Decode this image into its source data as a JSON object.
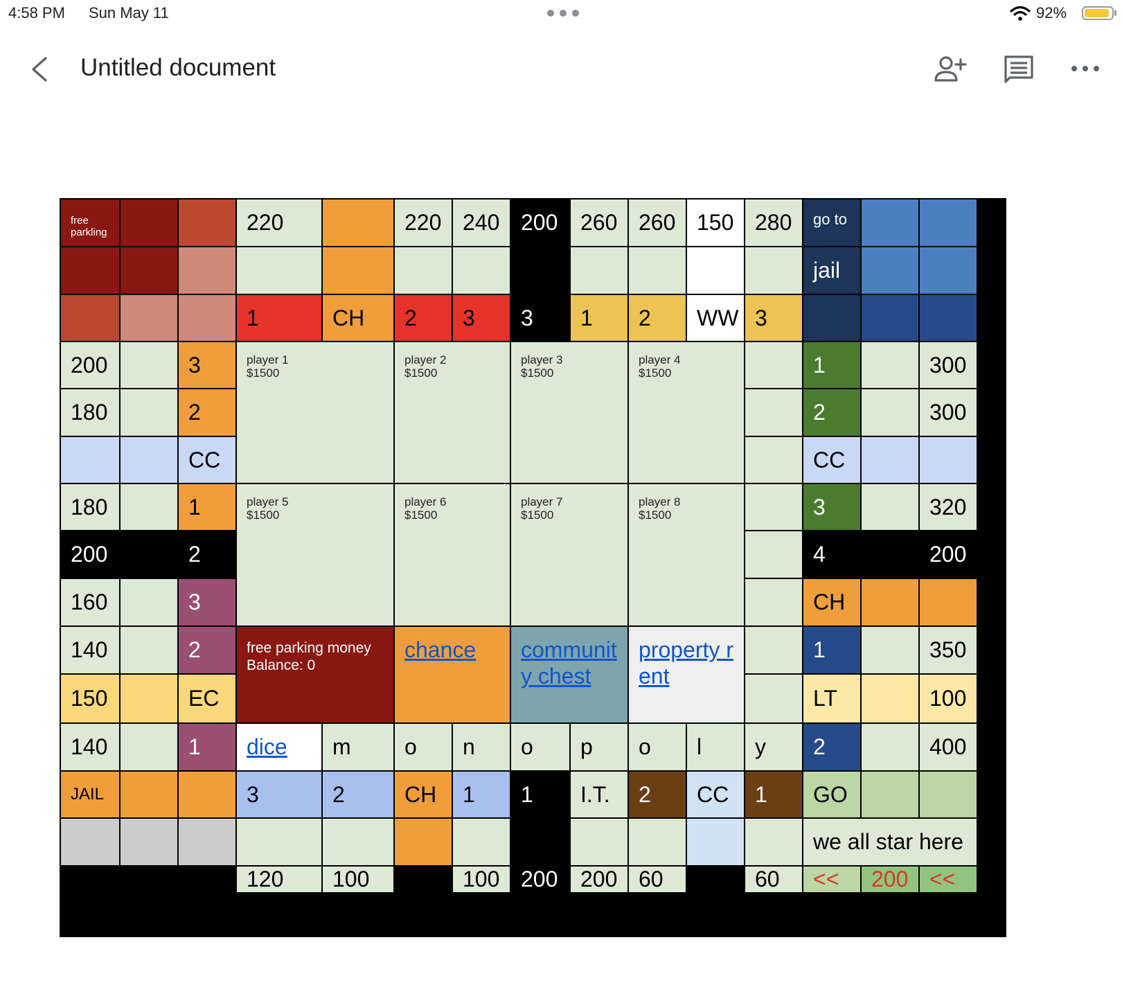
{
  "status_bar": {
    "time": "4:58 PM",
    "date": "Sun May 11",
    "battery_percent": "92%",
    "battery_level": 0.92,
    "wifi_icon": "wifi-icon",
    "battery_icon": "battery-icon"
  },
  "toolbar": {
    "back_icon": "chevron-left-icon",
    "title": "Untitled document",
    "share_icon": "add-person-icon",
    "comment_icon": "comment-icon",
    "more_icon": "more-horizontal-icon"
  },
  "board": {
    "rows": [
      [
        {
          "text": "free parkling",
          "bg": "#8a1812",
          "color": "#ffffff",
          "style": "s"
        },
        {
          "text": "",
          "bg": "#8a1812"
        },
        {
          "text": "",
          "bg": "#bc4832"
        },
        {
          "text": "220",
          "bg": "#dce9d5"
        },
        {
          "text": "",
          "bg": "#f09e3c"
        },
        {
          "text": "220",
          "bg": "#dce9d5"
        },
        {
          "text": "240",
          "bg": "#dce9d5"
        },
        {
          "text": "200",
          "bg": "#000000",
          "color": "#ffffff"
        },
        {
          "text": "260",
          "bg": "#dce9d5"
        },
        {
          "text": "260",
          "bg": "#dce9d5"
        },
        {
          "text": "150",
          "bg": "#ffffff"
        },
        {
          "text": "280",
          "bg": "#dce9d5"
        },
        {
          "text": "go to",
          "bg": "#1c3559",
          "color": "#ffffff",
          "style": "goto"
        },
        {
          "text": "",
          "bg": "#4a80c0"
        },
        {
          "text": "",
          "bg": "#4a80c0"
        }
      ],
      [
        {
          "text": "",
          "bg": "#8a1812"
        },
        {
          "text": "",
          "bg": "#8a1812"
        },
        {
          "text": "",
          "bg": "#d08878"
        },
        {
          "text": "",
          "bg": "#dce9d5"
        },
        {
          "text": "",
          "bg": "#f09e3c"
        },
        {
          "text": "",
          "bg": "#dce9d5"
        },
        {
          "text": "",
          "bg": "#dce9d5"
        },
        {
          "text": "",
          "bg": "#000000"
        },
        {
          "text": "",
          "bg": "#dce9d5"
        },
        {
          "text": "",
          "bg": "#dce9d5"
        },
        {
          "text": "",
          "bg": "#ffffff"
        },
        {
          "text": "",
          "bg": "#dce9d5"
        },
        {
          "text": "jail",
          "bg": "#1c3559",
          "color": "#ffffff"
        },
        {
          "text": "",
          "bg": "#4a80c0"
        },
        {
          "text": "",
          "bg": "#4a80c0"
        }
      ],
      [
        {
          "text": "",
          "bg": "#bc4832"
        },
        {
          "text": "",
          "bg": "#d08878"
        },
        {
          "text": "",
          "bg": "#d08878"
        },
        {
          "text": "1",
          "bg": "#e63329"
        },
        {
          "text": "CH",
          "bg": "#f09e3c"
        },
        {
          "text": "2",
          "bg": "#e63329"
        },
        {
          "text": "3",
          "bg": "#e63329"
        },
        {
          "text": "3",
          "bg": "#000000",
          "color": "#ffffff"
        },
        {
          "text": "1",
          "bg": "#eec355"
        },
        {
          "text": "2",
          "bg": "#eec355"
        },
        {
          "text": "WW",
          "bg": "#ffffff"
        },
        {
          "text": "3",
          "bg": "#eec355"
        },
        {
          "text": "",
          "bg": "#1c3559"
        },
        {
          "text": "",
          "bg": "#244a8a"
        },
        {
          "text": "",
          "bg": "#244a8a"
        }
      ],
      [
        {
          "text": "200",
          "bg": "#dce9d5"
        },
        {
          "text": "",
          "bg": "#dce9d5"
        },
        {
          "text": "3",
          "bg": "#f09e3c"
        },
        null,
        null,
        null,
        null,
        null,
        null,
        null,
        null,
        {
          "text": "",
          "bg": "#dce9d5"
        },
        {
          "text": "1",
          "bg": "#4a7b2f",
          "color": "#ffffff"
        },
        {
          "text": "",
          "bg": "#dce9d5"
        },
        {
          "text": "300",
          "bg": "#dce9d5"
        }
      ],
      [
        {
          "text": "180",
          "bg": "#dce9d5"
        },
        {
          "text": "",
          "bg": "#dce9d5"
        },
        {
          "text": "2",
          "bg": "#f09e3c"
        },
        null,
        null,
        null,
        null,
        null,
        null,
        null,
        null,
        {
          "text": "",
          "bg": "#dce9d5"
        },
        {
          "text": "2",
          "bg": "#4a7b2f",
          "color": "#ffffff"
        },
        {
          "text": "",
          "bg": "#dce9d5"
        },
        {
          "text": "300",
          "bg": "#dce9d5"
        }
      ],
      [
        {
          "text": "",
          "bg": "#c9d9f5"
        },
        {
          "text": "",
          "bg": "#c9d9f5"
        },
        {
          "text": "CC",
          "bg": "#c9d9f5"
        },
        null,
        null,
        null,
        null,
        null,
        null,
        null,
        null,
        {
          "text": "",
          "bg": "#dce9d5"
        },
        {
          "text": "CC",
          "bg": "#c9d9f5"
        },
        {
          "text": "",
          "bg": "#c9d9f5"
        },
        {
          "text": "",
          "bg": "#c9d9f5"
        }
      ],
      [
        {
          "text": "180",
          "bg": "#dce9d5"
        },
        {
          "text": "",
          "bg": "#dce9d5"
        },
        {
          "text": "1",
          "bg": "#f09e3c"
        },
        null,
        null,
        null,
        null,
        null,
        null,
        null,
        null,
        {
          "text": "",
          "bg": "#dce9d5"
        },
        {
          "text": "3",
          "bg": "#4a7b2f",
          "color": "#ffffff"
        },
        {
          "text": "",
          "bg": "#dce9d5"
        },
        {
          "text": "320",
          "bg": "#dce9d5"
        }
      ],
      [
        {
          "text": "200",
          "bg": "#000000",
          "color": "#ffffff"
        },
        {
          "text": "",
          "bg": "#000000"
        },
        {
          "text": "2",
          "bg": "#000000",
          "color": "#ffffff"
        },
        null,
        null,
        null,
        null,
        null,
        null,
        null,
        null,
        {
          "text": "",
          "bg": "#dce9d5"
        },
        {
          "text": "4",
          "bg": "#000000",
          "color": "#ffffff"
        },
        {
          "text": "",
          "bg": "#000000"
        },
        {
          "text": "200",
          "bg": "#000000",
          "color": "#ffffff"
        }
      ],
      [
        {
          "text": "160",
          "bg": "#dce9d5"
        },
        {
          "text": "",
          "bg": "#dce9d5"
        },
        {
          "text": "3",
          "bg": "#9b4f72",
          "color": "#ffffff"
        },
        null,
        null,
        null,
        null,
        null,
        null,
        null,
        null,
        {
          "text": "",
          "bg": "#dce9d5"
        },
        {
          "text": "CH",
          "bg": "#f09e3c"
        },
        {
          "text": "",
          "bg": "#f09e3c"
        },
        {
          "text": "",
          "bg": "#f09e3c"
        }
      ],
      [
        {
          "text": "140",
          "bg": "#dce9d5"
        },
        {
          "text": "",
          "bg": "#dce9d5"
        },
        {
          "text": "2",
          "bg": "#9b4f72",
          "color": "#ffffff"
        },
        null,
        null,
        null,
        null,
        null,
        null,
        null,
        null,
        {
          "text": "",
          "bg": "#dce9d5"
        },
        {
          "text": "1",
          "bg": "#244a8a",
          "color": "#ffffff"
        },
        {
          "text": "",
          "bg": "#dce9d5"
        },
        {
          "text": "350",
          "bg": "#dce9d5"
        }
      ],
      [
        {
          "text": "150",
          "bg": "#f8d87a"
        },
        {
          "text": "",
          "bg": "#f8d87a"
        },
        {
          "text": "EC",
          "bg": "#f8d87a"
        },
        null,
        null,
        null,
        null,
        null,
        null,
        null,
        null,
        {
          "text": "",
          "bg": "#dce9d5"
        },
        {
          "text": "LT",
          "bg": "#fbe7a6"
        },
        {
          "text": "",
          "bg": "#fbe7a6"
        },
        {
          "text": "100",
          "bg": "#fbe7a6"
        }
      ],
      [
        {
          "text": "140",
          "bg": "#dce9d5"
        },
        {
          "text": "",
          "bg": "#dce9d5"
        },
        {
          "text": "1",
          "bg": "#9b4f72",
          "color": "#ffffff"
        },
        {
          "text": "dice",
          "bg": "#ffffff",
          "color": "#1155cc",
          "link": true
        },
        {
          "text": "m",
          "bg": "#dce9d5"
        },
        {
          "text": "o",
          "bg": "#dce9d5"
        },
        {
          "text": "n",
          "bg": "#dce9d5"
        },
        {
          "text": "o",
          "bg": "#dce9d5"
        },
        {
          "text": "p",
          "bg": "#dce9d5"
        },
        {
          "text": "o",
          "bg": "#dce9d5"
        },
        {
          "text": "l",
          "bg": "#dce9d5"
        },
        {
          "text": "y",
          "bg": "#dce9d5"
        },
        {
          "text": "2",
          "bg": "#244a8a",
          "color": "#ffffff"
        },
        {
          "text": "",
          "bg": "#dce9d5"
        },
        {
          "text": "400",
          "bg": "#dce9d5"
        }
      ],
      [
        {
          "text": "JAIL",
          "bg": "#f09e3c",
          "size": 24
        },
        {
          "text": "",
          "bg": "#f09e3c"
        },
        {
          "text": "",
          "bg": "#f09e3c"
        },
        {
          "text": "3",
          "bg": "#a9c0ef"
        },
        {
          "text": "2",
          "bg": "#a9c0ef"
        },
        {
          "text": "CH",
          "bg": "#f09e3c"
        },
        {
          "text": "1",
          "bg": "#a9c0ef"
        },
        {
          "text": "1",
          "bg": "#000000",
          "color": "#ffffff"
        },
        {
          "text": "I.T.",
          "bg": "#dce9d5"
        },
        {
          "text": "2",
          "bg": "#6b3f14",
          "color": "#ffffff"
        },
        {
          "text": "CC",
          "bg": "#d0e2f3"
        },
        {
          "text": "1",
          "bg": "#6b3f14",
          "color": "#ffffff"
        },
        {
          "text": "GO",
          "bg": "#bcd6a6"
        },
        {
          "text": "",
          "bg": "#bcd6a6"
        },
        {
          "text": "",
          "bg": "#bcd6a6"
        }
      ],
      [
        {
          "text": "",
          "bg": "#cccccc"
        },
        {
          "text": "",
          "bg": "#cccccc"
        },
        {
          "text": "",
          "bg": "#cccccc"
        },
        {
          "text": "",
          "bg": "#dce9d5"
        },
        {
          "text": "",
          "bg": "#dce9d5"
        },
        {
          "text": "",
          "bg": "#f09e3c"
        },
        {
          "text": "",
          "bg": "#dce9d5"
        },
        {
          "text": "",
          "bg": "#000000"
        },
        {
          "text": "",
          "bg": "#dce9d5"
        },
        {
          "text": "",
          "bg": "#dce9d5"
        },
        {
          "text": "",
          "bg": "#d0e2f3"
        },
        {
          "text": "",
          "bg": "#dce9d5"
        },
        null,
        null,
        null
      ],
      [
        {
          "text": "",
          "bg": "#cccccc"
        },
        {
          "text": "",
          "bg": "#cccccc"
        },
        {
          "text": "",
          "bg": "#cccccc"
        },
        {
          "text": "120",
          "bg": "#dce9d5"
        },
        {
          "text": "100",
          "bg": "#dce9d5"
        },
        {
          "text": "",
          "bg": "#f09e3c"
        },
        {
          "text": "100",
          "bg": "#dce9d5"
        },
        {
          "text": "200",
          "bg": "#000000",
          "color": "#ffffff"
        },
        {
          "text": "200",
          "bg": "#dce9d5"
        },
        {
          "text": "60",
          "bg": "#dce9d5"
        },
        {
          "text": "",
          "bg": "#d0e2f3"
        },
        {
          "text": "60",
          "bg": "#dce9d5"
        },
        {
          "text": "<<",
          "bg": "#bcd6a6",
          "color": "#d03c2a"
        },
        {
          "text": "200",
          "bg": "#93c47d",
          "color": "#d03c2a"
        },
        {
          "text": "<<",
          "bg": "#93c47d",
          "color": "#d03c2a"
        }
      ]
    ],
    "blocks": [
      {
        "name": "player-1-panel",
        "row": 3,
        "col": 3,
        "rowspan": 3,
        "colspan": 2,
        "label": "player 1",
        "money": "$1500",
        "bg": "#dce9d5"
      },
      {
        "name": "player-2-panel",
        "row": 3,
        "col": 5,
        "rowspan": 3,
        "colspan": 2,
        "label": "player 2",
        "money": "$1500",
        "bg": "#dce9d5"
      },
      {
        "name": "player-3-panel",
        "row": 3,
        "col": 7,
        "rowspan": 3,
        "colspan": 2,
        "label": "player 3",
        "money": "$1500",
        "bg": "#dce9d5"
      },
      {
        "name": "player-4-panel",
        "row": 3,
        "col": 9,
        "rowspan": 3,
        "colspan": 2,
        "label": "player 4",
        "money": "$1500",
        "bg": "#dce9d5"
      },
      {
        "name": "player-5-panel",
        "row": 6,
        "col": 3,
        "rowspan": 3,
        "colspan": 2,
        "label": "player 5",
        "money": "$1500",
        "bg": "#dce9d5"
      },
      {
        "name": "player-6-panel",
        "row": 6,
        "col": 5,
        "rowspan": 3,
        "colspan": 2,
        "label": "player 6",
        "money": "$1500",
        "bg": "#dce9d5"
      },
      {
        "name": "player-7-panel",
        "row": 6,
        "col": 7,
        "rowspan": 3,
        "colspan": 2,
        "label": "player 7",
        "money": "$1500",
        "bg": "#dce9d5"
      },
      {
        "name": "player-8-panel",
        "row": 6,
        "col": 9,
        "rowspan": 3,
        "colspan": 2,
        "label": "player 8",
        "money": "$1500",
        "bg": "#dce9d5"
      },
      {
        "name": "free-parking-money-panel",
        "row": 9,
        "col": 3,
        "rowspan": 2,
        "colspan": 2,
        "label": "free parking money",
        "money": "Balance: 0",
        "bg": "#8a1812",
        "color": "#ffffff",
        "kind": "mid"
      },
      {
        "name": "chance-link",
        "row": 9,
        "col": 5,
        "rowspan": 2,
        "colspan": 2,
        "label": "chance",
        "bg": "#f09e3c",
        "kind": "link"
      },
      {
        "name": "community-chest-link",
        "row": 9,
        "col": 7,
        "rowspan": 2,
        "colspan": 2,
        "label": "community chest",
        "bg": "#7ea5ae",
        "kind": "link"
      },
      {
        "name": "property-rent-link",
        "row": 9,
        "col": 9,
        "rowspan": 2,
        "colspan": 2,
        "label": "property rent",
        "bg": "#efefef",
        "kind": "link"
      },
      {
        "name": "start-note",
        "row": 13,
        "col": 12,
        "rowspan": 1,
        "colspan": 3,
        "label": "we all star here",
        "bg": "#dce9d5",
        "kind": "plain"
      }
    ]
  }
}
